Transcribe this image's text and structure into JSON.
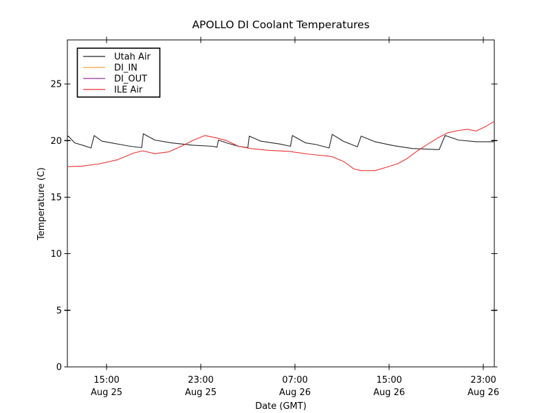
{
  "window": {
    "background": "#ffffff"
  },
  "chart_data": {
    "type": "line",
    "title": "APOLLO DI Coolant Temperatures",
    "xlabel": "Date (GMT)",
    "ylabel": "Temperature (C)",
    "x_unit_note": "hours since Aug 25 00:00 GMT",
    "xlim": [
      11.67,
      47.93
    ],
    "ylim": [
      0,
      28.9
    ],
    "grid": false,
    "legend_position": "upper-left",
    "axis_color": "#000000",
    "y_ticks": [
      {
        "value": 0,
        "label": "0"
      },
      {
        "value": 5,
        "label": "5"
      },
      {
        "value": 10,
        "label": "10"
      },
      {
        "value": 15,
        "label": "15"
      },
      {
        "value": 20,
        "label": "20"
      },
      {
        "value": 25,
        "label": "25"
      }
    ],
    "x_ticks": [
      {
        "value": 15,
        "time": "15:00",
        "date": "Aug 25"
      },
      {
        "value": 23,
        "time": "23:00",
        "date": "Aug 25"
      },
      {
        "value": 31,
        "time": "07:00",
        "date": "Aug 26"
      },
      {
        "value": 39,
        "time": "15:00",
        "date": "Aug 26"
      },
      {
        "value": 47,
        "time": "23:00",
        "date": "Aug 26"
      }
    ],
    "series": [
      {
        "name": "Utah Air",
        "color": "#222222",
        "points": [
          [
            11.67,
            20.3
          ],
          [
            11.75,
            20.4
          ],
          [
            12.3,
            19.8
          ],
          [
            13.1,
            19.55
          ],
          [
            13.68,
            19.35
          ],
          [
            13.95,
            20.45
          ],
          [
            14.6,
            19.95
          ],
          [
            15.4,
            19.8
          ],
          [
            16.2,
            19.65
          ],
          [
            17.0,
            19.5
          ],
          [
            17.98,
            19.38
          ],
          [
            18.12,
            20.6
          ],
          [
            19.1,
            20.05
          ],
          [
            20.5,
            19.8
          ],
          [
            22.3,
            19.6
          ],
          [
            24.0,
            19.5
          ],
          [
            24.38,
            19.42
          ],
          [
            24.5,
            20.05
          ],
          [
            25.2,
            19.8
          ],
          [
            26.2,
            19.5
          ],
          [
            27.0,
            19.38
          ],
          [
            27.12,
            20.4
          ],
          [
            28.1,
            19.95
          ],
          [
            29.7,
            19.7
          ],
          [
            30.62,
            19.5
          ],
          [
            30.78,
            20.45
          ],
          [
            31.9,
            19.8
          ],
          [
            32.8,
            19.65
          ],
          [
            33.9,
            19.35
          ],
          [
            34.17,
            20.55
          ],
          [
            35.1,
            19.95
          ],
          [
            36.3,
            19.45
          ],
          [
            36.62,
            20.4
          ],
          [
            37.8,
            19.9
          ],
          [
            39.4,
            19.55
          ],
          [
            41.0,
            19.3
          ],
          [
            43.25,
            19.2
          ],
          [
            43.75,
            20.45
          ],
          [
            44.9,
            20.05
          ],
          [
            46.4,
            19.9
          ],
          [
            47.93,
            19.9
          ]
        ]
      },
      {
        "name": "DI_IN",
        "color": "#ffa03c",
        "points": []
      },
      {
        "name": "DI_OUT",
        "color": "#99339c",
        "points": []
      },
      {
        "name": "ILE Air",
        "color": "#e8302e",
        "points": [
          [
            11.67,
            17.7
          ],
          [
            12.95,
            17.75
          ],
          [
            14.4,
            17.95
          ],
          [
            15.9,
            18.3
          ],
          [
            17.3,
            18.9
          ],
          [
            18.05,
            19.1
          ],
          [
            19.1,
            18.85
          ],
          [
            20.25,
            19.0
          ],
          [
            21.25,
            19.45
          ],
          [
            22.3,
            20.0
          ],
          [
            23.35,
            20.45
          ],
          [
            24.3,
            20.25
          ],
          [
            25.2,
            20.0
          ],
          [
            26.2,
            19.5
          ],
          [
            27.25,
            19.3
          ],
          [
            28.7,
            19.15
          ],
          [
            30.5,
            19.05
          ],
          [
            32.2,
            18.8
          ],
          [
            34.1,
            18.6
          ],
          [
            35.15,
            18.15
          ],
          [
            36.0,
            17.5
          ],
          [
            36.62,
            17.35
          ],
          [
            37.8,
            17.35
          ],
          [
            38.8,
            17.65
          ],
          [
            39.7,
            17.95
          ],
          [
            40.5,
            18.4
          ],
          [
            41.4,
            19.1
          ],
          [
            42.3,
            19.7
          ],
          [
            43.15,
            20.25
          ],
          [
            44.0,
            20.7
          ],
          [
            44.9,
            20.9
          ],
          [
            45.65,
            21.0
          ],
          [
            46.4,
            20.85
          ],
          [
            47.2,
            21.25
          ],
          [
            47.93,
            21.7
          ]
        ]
      }
    ]
  }
}
